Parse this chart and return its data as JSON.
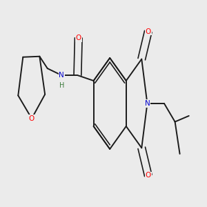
{
  "background_color": "#ebebeb",
  "bond_color": "#1a1a1a",
  "atom_colors": {
    "O": "#ff0000",
    "N": "#0000cc",
    "H": "#3a7a3a",
    "C": "#1a1a1a"
  },
  "figsize": [
    3.0,
    3.0
  ],
  "dpi": 100,
  "bond_lw": 1.4,
  "dbl_lw": 1.2,
  "font_size": 7.5
}
